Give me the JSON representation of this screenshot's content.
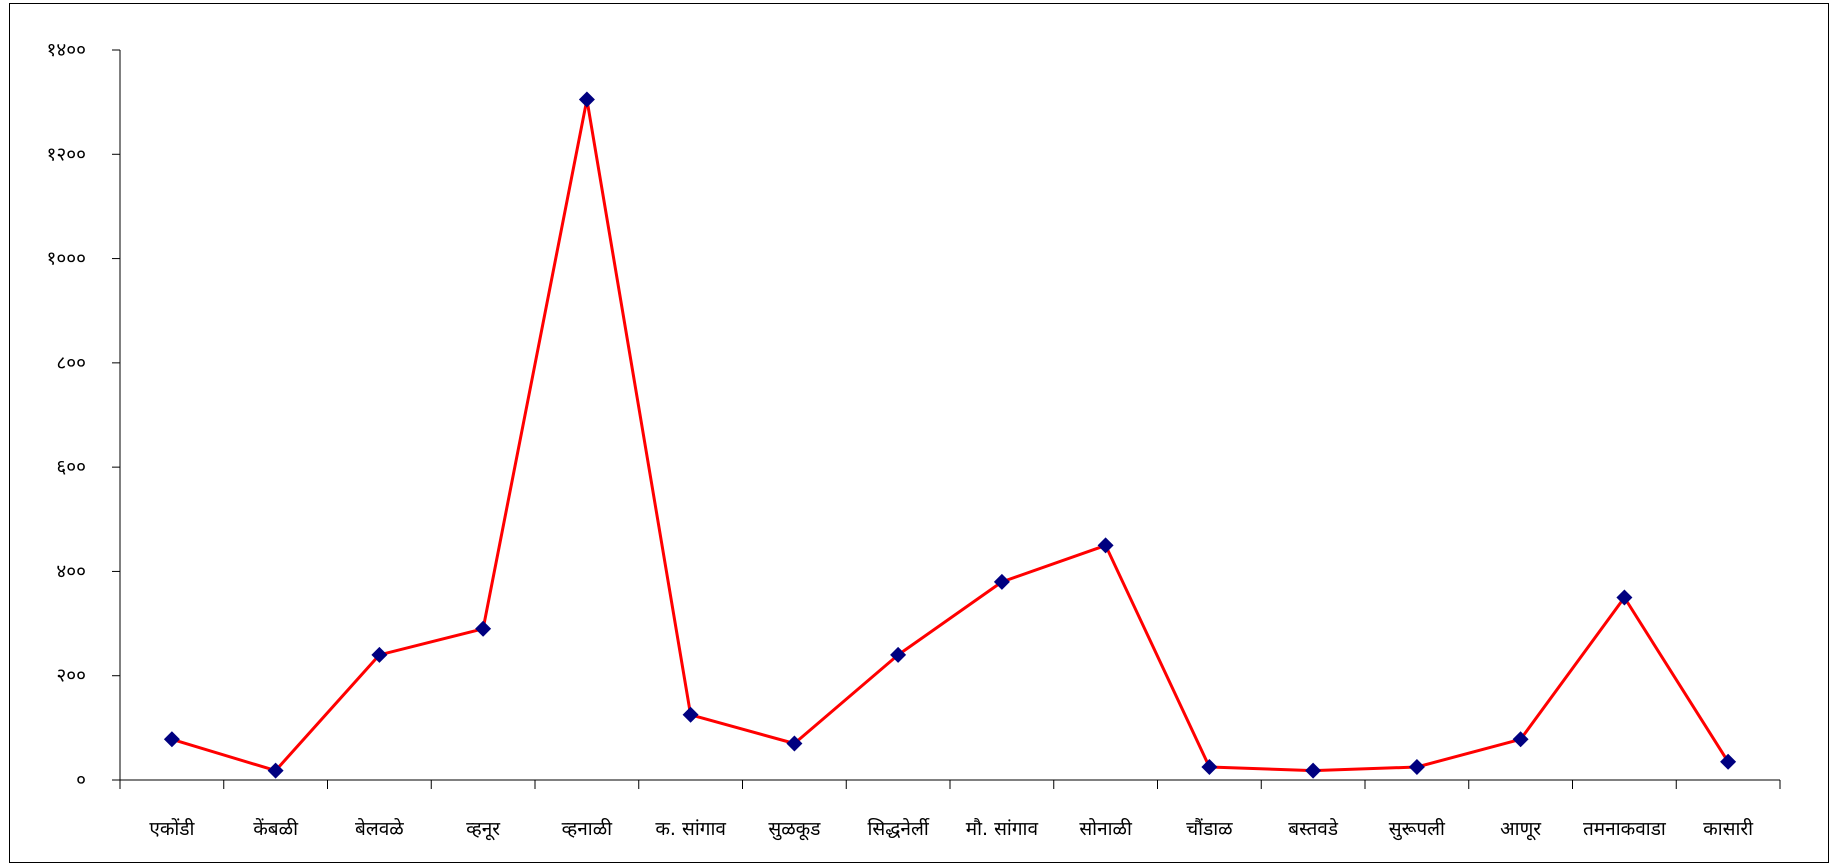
{
  "chart_data": {
    "type": "line",
    "title": "",
    "xlabel": "",
    "ylabel": "",
    "categories": [
      "एकोंडी",
      "केंबळी",
      "बेलवळे",
      "व्हनूर",
      "व्हनाळी",
      "क. सांगाव",
      "सुळकूड",
      "सिद्धनेर्ली",
      "मौ. सांगाव",
      "सोनाळी",
      "चौंडाळ",
      "बस्तवडे",
      "सुरूपली",
      "आणूर",
      "तमनाकवाडा",
      "कासारी"
    ],
    "series": [
      {
        "values": [
          78,
          18,
          240,
          290,
          1305,
          125,
          70,
          240,
          380,
          450,
          25,
          18,
          25,
          78,
          350,
          35
        ]
      }
    ],
    "ylim": [
      0,
      1400
    ],
    "yticks": [
      0,
      200,
      400,
      600,
      800,
      1000,
      1200,
      1400
    ],
    "ytick_labels": [
      "०",
      "२००",
      "४००",
      "६००",
      "८००",
      "१०००",
      "१२००",
      "१४००"
    ],
    "grid": false,
    "legend": "none",
    "line_color": "#ff0000",
    "marker_color": "#000080",
    "marker": "diamond"
  }
}
